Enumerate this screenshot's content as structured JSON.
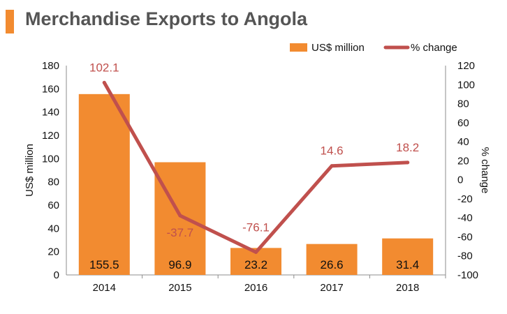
{
  "header": {
    "title": "Merchandise Exports to Angola"
  },
  "colors": {
    "accent": "#f28b30",
    "bar": "#f28b30",
    "line": "#c0504d",
    "title": "#555555"
  },
  "chart_data": {
    "type": "bar",
    "title": "Merchandise Exports to Angola",
    "categories": [
      "2014",
      "2015",
      "2016",
      "2017",
      "2018"
    ],
    "series": [
      {
        "name": "US$ million",
        "type": "bar",
        "axis": "left",
        "values": [
          155.5,
          96.9,
          23.2,
          26.6,
          31.4
        ],
        "labels": [
          "155.5",
          "96.9",
          "23.2",
          "26.6",
          "31.4"
        ]
      },
      {
        "name": "% change",
        "type": "line",
        "axis": "right",
        "values": [
          102.1,
          -37.7,
          -76.1,
          14.6,
          18.2
        ],
        "labels": [
          "102.1",
          "-37.7",
          "-76.1",
          "14.6",
          "18.2"
        ]
      }
    ],
    "ylabel": "US$ million",
    "ylabel_right": "% change",
    "ylim": [
      0,
      180
    ],
    "ylim_right": [
      -100,
      120
    ],
    "yticks": [
      "0",
      "20",
      "40",
      "60",
      "80",
      "100",
      "120",
      "140",
      "160",
      "180"
    ],
    "yticks_right": [
      "-100",
      "-80",
      "-60",
      "-40",
      "-20",
      "0",
      "20",
      "40",
      "60",
      "80",
      "100",
      "120"
    ],
    "grid": false,
    "legend": "top-right"
  }
}
